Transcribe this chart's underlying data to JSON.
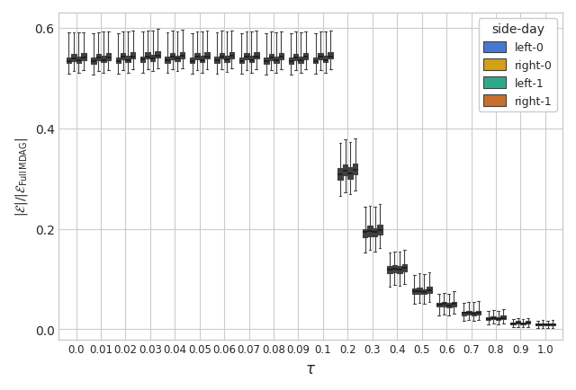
{
  "tau_labels": [
    "0.0",
    "0.01",
    "0.02",
    "0.03",
    "0.04",
    "0.05",
    "0.06",
    "0.07",
    "0.08",
    "0.09",
    "0.1",
    "0.2",
    "0.3",
    "0.4",
    "0.5",
    "0.6",
    "0.7",
    "0.8",
    "0.9",
    "1.0"
  ],
  "tau_x": [
    0,
    1,
    2,
    3,
    4,
    5,
    6,
    7,
    8,
    9,
    10,
    11,
    12,
    13,
    14,
    15,
    16,
    17,
    18,
    19
  ],
  "series": [
    "left-0",
    "right-0",
    "left-1",
    "right-1"
  ],
  "colors": [
    "#4878CF",
    "#D4A017",
    "#2EAA8A",
    "#C86E2D"
  ],
  "edge_color": "#404040",
  "median_color": "#1a1a1a",
  "whisker_color": "#404040",
  "box_data": {
    "left-0": {
      "medians": [
        0.534,
        0.533,
        0.534,
        0.537,
        0.536,
        0.534,
        0.535,
        0.534,
        0.533,
        0.533,
        0.534,
        0.308,
        0.193,
        0.118,
        0.076,
        0.049,
        0.032,
        0.021,
        0.011,
        0.009
      ],
      "q1": [
        0.529,
        0.528,
        0.529,
        0.531,
        0.53,
        0.529,
        0.53,
        0.529,
        0.528,
        0.528,
        0.529,
        0.298,
        0.183,
        0.111,
        0.071,
        0.045,
        0.028,
        0.019,
        0.009,
        0.007
      ],
      "q3": [
        0.541,
        0.54,
        0.541,
        0.543,
        0.542,
        0.541,
        0.542,
        0.541,
        0.54,
        0.54,
        0.541,
        0.32,
        0.2,
        0.125,
        0.081,
        0.052,
        0.035,
        0.024,
        0.014,
        0.011
      ],
      "whislo": [
        0.508,
        0.507,
        0.508,
        0.511,
        0.51,
        0.508,
        0.509,
        0.508,
        0.507,
        0.507,
        0.508,
        0.265,
        0.152,
        0.085,
        0.05,
        0.028,
        0.016,
        0.01,
        0.004,
        0.003
      ],
      "whishi": [
        0.59,
        0.588,
        0.589,
        0.592,
        0.591,
        0.589,
        0.59,
        0.589,
        0.588,
        0.588,
        0.589,
        0.37,
        0.243,
        0.153,
        0.108,
        0.07,
        0.053,
        0.036,
        0.02,
        0.017
      ]
    },
    "right-0": {
      "medians": [
        0.539,
        0.54,
        0.542,
        0.543,
        0.542,
        0.542,
        0.543,
        0.542,
        0.541,
        0.541,
        0.542,
        0.316,
        0.195,
        0.12,
        0.076,
        0.05,
        0.032,
        0.022,
        0.013,
        0.01
      ],
      "q1": [
        0.534,
        0.535,
        0.537,
        0.538,
        0.537,
        0.537,
        0.538,
        0.537,
        0.536,
        0.536,
        0.537,
        0.306,
        0.185,
        0.113,
        0.071,
        0.046,
        0.029,
        0.02,
        0.011,
        0.008
      ],
      "q3": [
        0.547,
        0.548,
        0.549,
        0.551,
        0.55,
        0.549,
        0.55,
        0.549,
        0.548,
        0.548,
        0.549,
        0.328,
        0.206,
        0.128,
        0.083,
        0.054,
        0.036,
        0.026,
        0.016,
        0.012
      ],
      "whislo": [
        0.513,
        0.514,
        0.516,
        0.518,
        0.517,
        0.516,
        0.517,
        0.516,
        0.515,
        0.515,
        0.516,
        0.273,
        0.158,
        0.088,
        0.053,
        0.03,
        0.018,
        0.011,
        0.005,
        0.003
      ],
      "whishi": [
        0.59,
        0.591,
        0.593,
        0.595,
        0.594,
        0.593,
        0.594,
        0.593,
        0.592,
        0.592,
        0.593,
        0.378,
        0.246,
        0.155,
        0.111,
        0.073,
        0.055,
        0.038,
        0.022,
        0.018
      ]
    },
    "left-1": {
      "medians": [
        0.535,
        0.536,
        0.536,
        0.539,
        0.538,
        0.536,
        0.537,
        0.536,
        0.535,
        0.535,
        0.536,
        0.31,
        0.194,
        0.119,
        0.074,
        0.048,
        0.031,
        0.021,
        0.011,
        0.009
      ],
      "q1": [
        0.53,
        0.531,
        0.531,
        0.534,
        0.533,
        0.531,
        0.532,
        0.531,
        0.53,
        0.53,
        0.531,
        0.3,
        0.184,
        0.112,
        0.07,
        0.044,
        0.028,
        0.019,
        0.009,
        0.007
      ],
      "q3": [
        0.543,
        0.544,
        0.544,
        0.546,
        0.545,
        0.544,
        0.545,
        0.544,
        0.543,
        0.543,
        0.544,
        0.322,
        0.201,
        0.126,
        0.08,
        0.052,
        0.035,
        0.024,
        0.014,
        0.011
      ],
      "whislo": [
        0.51,
        0.511,
        0.511,
        0.514,
        0.513,
        0.511,
        0.512,
        0.511,
        0.51,
        0.51,
        0.511,
        0.268,
        0.155,
        0.087,
        0.05,
        0.028,
        0.016,
        0.01,
        0.004,
        0.003
      ],
      "whishi": [
        0.591,
        0.592,
        0.592,
        0.594,
        0.593,
        0.592,
        0.593,
        0.592,
        0.591,
        0.591,
        0.592,
        0.372,
        0.244,
        0.154,
        0.109,
        0.071,
        0.054,
        0.037,
        0.021,
        0.017
      ]
    },
    "right-1": {
      "medians": [
        0.54,
        0.541,
        0.543,
        0.545,
        0.544,
        0.543,
        0.544,
        0.543,
        0.542,
        0.542,
        0.543,
        0.318,
        0.198,
        0.122,
        0.078,
        0.05,
        0.033,
        0.023,
        0.013,
        0.01
      ],
      "q1": [
        0.535,
        0.536,
        0.538,
        0.54,
        0.539,
        0.538,
        0.539,
        0.538,
        0.537,
        0.537,
        0.538,
        0.308,
        0.188,
        0.115,
        0.073,
        0.046,
        0.03,
        0.021,
        0.011,
        0.008
      ],
      "q3": [
        0.549,
        0.55,
        0.551,
        0.553,
        0.552,
        0.551,
        0.552,
        0.551,
        0.55,
        0.55,
        0.551,
        0.33,
        0.208,
        0.13,
        0.085,
        0.055,
        0.037,
        0.027,
        0.016,
        0.012
      ],
      "whislo": [
        0.515,
        0.516,
        0.518,
        0.52,
        0.519,
        0.518,
        0.519,
        0.518,
        0.517,
        0.517,
        0.518,
        0.276,
        0.161,
        0.09,
        0.055,
        0.031,
        0.018,
        0.012,
        0.005,
        0.003
      ],
      "whishi": [
        0.591,
        0.592,
        0.594,
        0.597,
        0.596,
        0.594,
        0.595,
        0.594,
        0.593,
        0.593,
        0.594,
        0.38,
        0.25,
        0.158,
        0.113,
        0.075,
        0.056,
        0.04,
        0.023,
        0.019
      ]
    }
  },
  "ylabel": "$|\\mathcal{E}|/|\\mathcal{E}_{\\mathrm{Full\\,MDAG}}|$",
  "xlabel": "$\\tau$",
  "legend_title": "side-day",
  "ylim": [
    -0.02,
    0.63
  ],
  "yticks": [
    0.0,
    0.2,
    0.4,
    0.6
  ],
  "box_width": 0.2,
  "figsize": [
    6.4,
    4.35
  ],
  "dpi": 100
}
